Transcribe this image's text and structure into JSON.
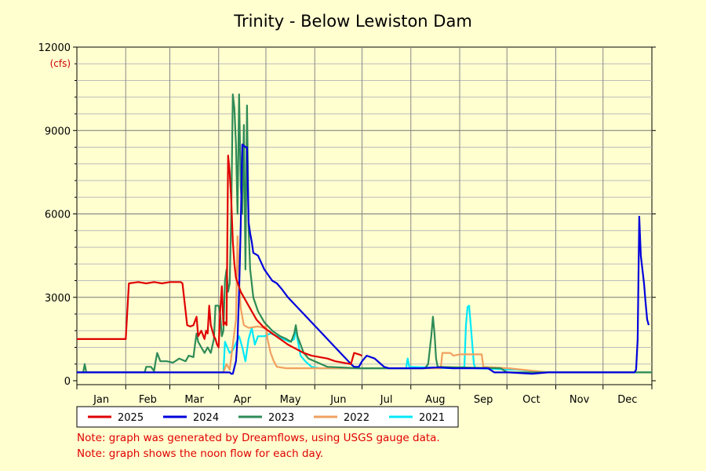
{
  "chart_data": {
    "type": "line",
    "title": "Trinity - Below Lewiston Dam",
    "ylabel": "(cfs)",
    "xlabel": "",
    "ylim": [
      0,
      12000
    ],
    "yticks": [
      0,
      3000,
      6000,
      9000,
      12000
    ],
    "ytick_labels": [
      "0",
      "3000",
      "6000",
      "9000",
      "12000"
    ],
    "xlim": [
      1,
      366
    ],
    "months": [
      "Jan",
      "Feb",
      "Mar",
      "Apr",
      "May",
      "Jun",
      "Jul",
      "Aug",
      "Sep",
      "Oct",
      "Nov",
      "Dec"
    ],
    "month_starts": [
      1,
      32,
      60,
      91,
      121,
      152,
      182,
      213,
      244,
      274,
      305,
      335
    ],
    "grid": true,
    "legend_position": "bottom",
    "series": [
      {
        "name": "2021",
        "color": "#00e8f8",
        "points": [
          [
            1,
            300
          ],
          [
            90,
            300
          ],
          [
            94,
            300
          ],
          [
            95,
            1400
          ],
          [
            98,
            1000
          ],
          [
            100,
            1100
          ],
          [
            104,
            1600
          ],
          [
            106,
            1200
          ],
          [
            108,
            700
          ],
          [
            110,
            1500
          ],
          [
            112,
            1900
          ],
          [
            114,
            1300
          ],
          [
            116,
            1600
          ],
          [
            120,
            1600
          ],
          [
            124,
            1700
          ],
          [
            128,
            1600
          ],
          [
            132,
            1500
          ],
          [
            136,
            1400
          ],
          [
            139,
            1500
          ],
          [
            140,
            1900
          ],
          [
            141,
            1500
          ],
          [
            143,
            900
          ],
          [
            146,
            700
          ],
          [
            150,
            500
          ],
          [
            155,
            450
          ],
          [
            180,
            450
          ],
          [
            210,
            450
          ],
          [
            211,
            800
          ],
          [
            212,
            500
          ],
          [
            240,
            450
          ],
          [
            247,
            500
          ],
          [
            248,
            2000
          ],
          [
            249,
            2650
          ],
          [
            250,
            2700
          ],
          [
            251,
            2000
          ],
          [
            253,
            600
          ],
          [
            254,
            450
          ],
          [
            275,
            400
          ],
          [
            280,
            400
          ],
          [
            300,
            300
          ],
          [
            363,
            300
          ],
          [
            366,
            300
          ]
        ]
      },
      {
        "name": "2022",
        "color": "#f0a060",
        "points": [
          [
            1,
            300
          ],
          [
            90,
            300
          ],
          [
            94,
            300
          ],
          [
            96,
            600
          ],
          [
            98,
            400
          ],
          [
            100,
            1300
          ],
          [
            102,
            2200
          ],
          [
            103,
            5200
          ],
          [
            104,
            3500
          ],
          [
            105,
            2600
          ],
          [
            107,
            2000
          ],
          [
            110,
            1900
          ],
          [
            116,
            1950
          ],
          [
            120,
            1900
          ],
          [
            121,
            2000
          ],
          [
            122,
            1500
          ],
          [
            124,
            1000
          ],
          [
            126,
            700
          ],
          [
            128,
            500
          ],
          [
            134,
            450
          ],
          [
            145,
            450
          ],
          [
            155,
            450
          ],
          [
            180,
            450
          ],
          [
            232,
            450
          ],
          [
            233,
            1000
          ],
          [
            238,
            1000
          ],
          [
            240,
            900
          ],
          [
            244,
            950
          ],
          [
            250,
            950
          ],
          [
            254,
            950
          ],
          [
            258,
            950
          ],
          [
            259,
            500
          ],
          [
            275,
            450
          ],
          [
            300,
            300
          ],
          [
            366,
            300
          ]
        ]
      },
      {
        "name": "2023",
        "color": "#2e8b57",
        "points": [
          [
            1,
            300
          ],
          [
            5,
            300
          ],
          [
            6,
            600
          ],
          [
            7,
            300
          ],
          [
            44,
            300
          ],
          [
            45,
            500
          ],
          [
            48,
            500
          ],
          [
            50,
            350
          ],
          [
            51,
            700
          ],
          [
            52,
            1000
          ],
          [
            54,
            700
          ],
          [
            58,
            700
          ],
          [
            62,
            650
          ],
          [
            66,
            800
          ],
          [
            70,
            700
          ],
          [
            72,
            900
          ],
          [
            75,
            850
          ],
          [
            76,
            1300
          ],
          [
            77,
            1700
          ],
          [
            78,
            1400
          ],
          [
            80,
            1200
          ],
          [
            82,
            1000
          ],
          [
            84,
            1200
          ],
          [
            86,
            1000
          ],
          [
            88,
            1500
          ],
          [
            89,
            2700
          ],
          [
            91,
            2700
          ],
          [
            92,
            2400
          ],
          [
            93,
            1600
          ],
          [
            94,
            1800
          ],
          [
            95,
            3600
          ],
          [
            96,
            4000
          ],
          [
            97,
            3200
          ],
          [
            98,
            3500
          ],
          [
            99,
            6000
          ],
          [
            100,
            10300
          ],
          [
            101,
            9800
          ],
          [
            102,
            8500
          ],
          [
            103,
            6000
          ],
          [
            104,
            10300
          ],
          [
            105,
            7000
          ],
          [
            106,
            6000
          ],
          [
            107,
            9200
          ],
          [
            108,
            4000
          ],
          [
            109,
            9900
          ],
          [
            110,
            5500
          ],
          [
            111,
            4000
          ],
          [
            113,
            3000
          ],
          [
            116,
            2500
          ],
          [
            120,
            2100
          ],
          [
            125,
            1800
          ],
          [
            130,
            1600
          ],
          [
            134,
            1500
          ],
          [
            137,
            1400
          ],
          [
            139,
            1700
          ],
          [
            140,
            2000
          ],
          [
            141,
            1600
          ],
          [
            143,
            1300
          ],
          [
            145,
            1000
          ],
          [
            148,
            800
          ],
          [
            152,
            700
          ],
          [
            156,
            600
          ],
          [
            160,
            500
          ],
          [
            180,
            450
          ],
          [
            200,
            450
          ],
          [
            222,
            450
          ],
          [
            224,
            600
          ],
          [
            226,
            1600
          ],
          [
            227,
            2300
          ],
          [
            228,
            1700
          ],
          [
            229,
            800
          ],
          [
            230,
            500
          ],
          [
            270,
            450
          ],
          [
            274,
            300
          ],
          [
            300,
            300
          ],
          [
            366,
            300
          ]
        ]
      },
      {
        "name": "2024",
        "color": "#0000dd",
        "points": [
          [
            1,
            300
          ],
          [
            90,
            300
          ],
          [
            98,
            300
          ],
          [
            99,
            250
          ],
          [
            100,
            250
          ],
          [
            102,
            700
          ],
          [
            103,
            1500
          ],
          [
            104,
            3200
          ],
          [
            105,
            5600
          ],
          [
            106,
            8500
          ],
          [
            108,
            8400
          ],
          [
            109,
            8400
          ],
          [
            110,
            5700
          ],
          [
            111,
            5300
          ],
          [
            112,
            5000
          ],
          [
            113,
            4600
          ],
          [
            116,
            4500
          ],
          [
            120,
            4000
          ],
          [
            125,
            3600
          ],
          [
            128,
            3500
          ],
          [
            131,
            3300
          ],
          [
            135,
            3000
          ],
          [
            140,
            2700
          ],
          [
            145,
            2400
          ],
          [
            150,
            2100
          ],
          [
            155,
            1800
          ],
          [
            160,
            1500
          ],
          [
            165,
            1200
          ],
          [
            170,
            900
          ],
          [
            175,
            600
          ],
          [
            177,
            500
          ],
          [
            180,
            500
          ],
          [
            182,
            700
          ],
          [
            185,
            900
          ],
          [
            190,
            800
          ],
          [
            193,
            650
          ],
          [
            196,
            500
          ],
          [
            199,
            450
          ],
          [
            210,
            450
          ],
          [
            220,
            450
          ],
          [
            230,
            480
          ],
          [
            240,
            450
          ],
          [
            262,
            450
          ],
          [
            266,
            300
          ],
          [
            275,
            300
          ],
          [
            290,
            250
          ],
          [
            300,
            300
          ],
          [
            355,
            300
          ],
          [
            356,
            400
          ],
          [
            357,
            1500
          ],
          [
            358,
            5900
          ],
          [
            359,
            4500
          ],
          [
            361,
            3500
          ],
          [
            362,
            2800
          ],
          [
            363,
            2200
          ],
          [
            364,
            2000
          ]
        ]
      },
      {
        "name": "2025",
        "color": "#e00000",
        "points": [
          [
            1,
            1500
          ],
          [
            14,
            1500
          ],
          [
            26,
            1500
          ],
          [
            31,
            1500
          ],
          [
            32,
            1500
          ],
          [
            33,
            2500
          ],
          [
            34,
            3500
          ],
          [
            40,
            3550
          ],
          [
            45,
            3500
          ],
          [
            50,
            3550
          ],
          [
            55,
            3500
          ],
          [
            60,
            3550
          ],
          [
            65,
            3550
          ],
          [
            67,
            3550
          ],
          [
            68,
            3500
          ],
          [
            71,
            2000
          ],
          [
            73,
            1950
          ],
          [
            75,
            2000
          ],
          [
            77,
            2300
          ],
          [
            78,
            1600
          ],
          [
            80,
            1800
          ],
          [
            82,
            1500
          ],
          [
            83,
            1800
          ],
          [
            84,
            1700
          ],
          [
            85,
            2700
          ],
          [
            86,
            2000
          ],
          [
            88,
            1600
          ],
          [
            89,
            1500
          ],
          [
            90,
            1300
          ],
          [
            91,
            1200
          ],
          [
            92,
            2500
          ],
          [
            93,
            3400
          ],
          [
            94,
            2000
          ],
          [
            95,
            2100
          ],
          [
            96,
            2000
          ],
          [
            97,
            8100
          ],
          [
            98,
            7500
          ],
          [
            99,
            6500
          ],
          [
            100,
            5000
          ],
          [
            101,
            4200
          ],
          [
            102,
            3700
          ],
          [
            105,
            3200
          ],
          [
            110,
            2700
          ],
          [
            115,
            2200
          ],
          [
            120,
            1900
          ],
          [
            125,
            1700
          ],
          [
            130,
            1500
          ],
          [
            135,
            1300
          ],
          [
            140,
            1150
          ],
          [
            145,
            1000
          ],
          [
            150,
            900
          ],
          [
            160,
            800
          ],
          [
            165,
            700
          ],
          [
            175,
            600
          ],
          [
            176,
            800
          ],
          [
            177,
            1000
          ],
          [
            180,
            950
          ],
          [
            182,
            900
          ]
        ]
      }
    ]
  },
  "notes": [
    "Note: graph was generated by Dreamflows, using USGS gauge data.",
    "Note: graph shows the noon flow for each day."
  ]
}
